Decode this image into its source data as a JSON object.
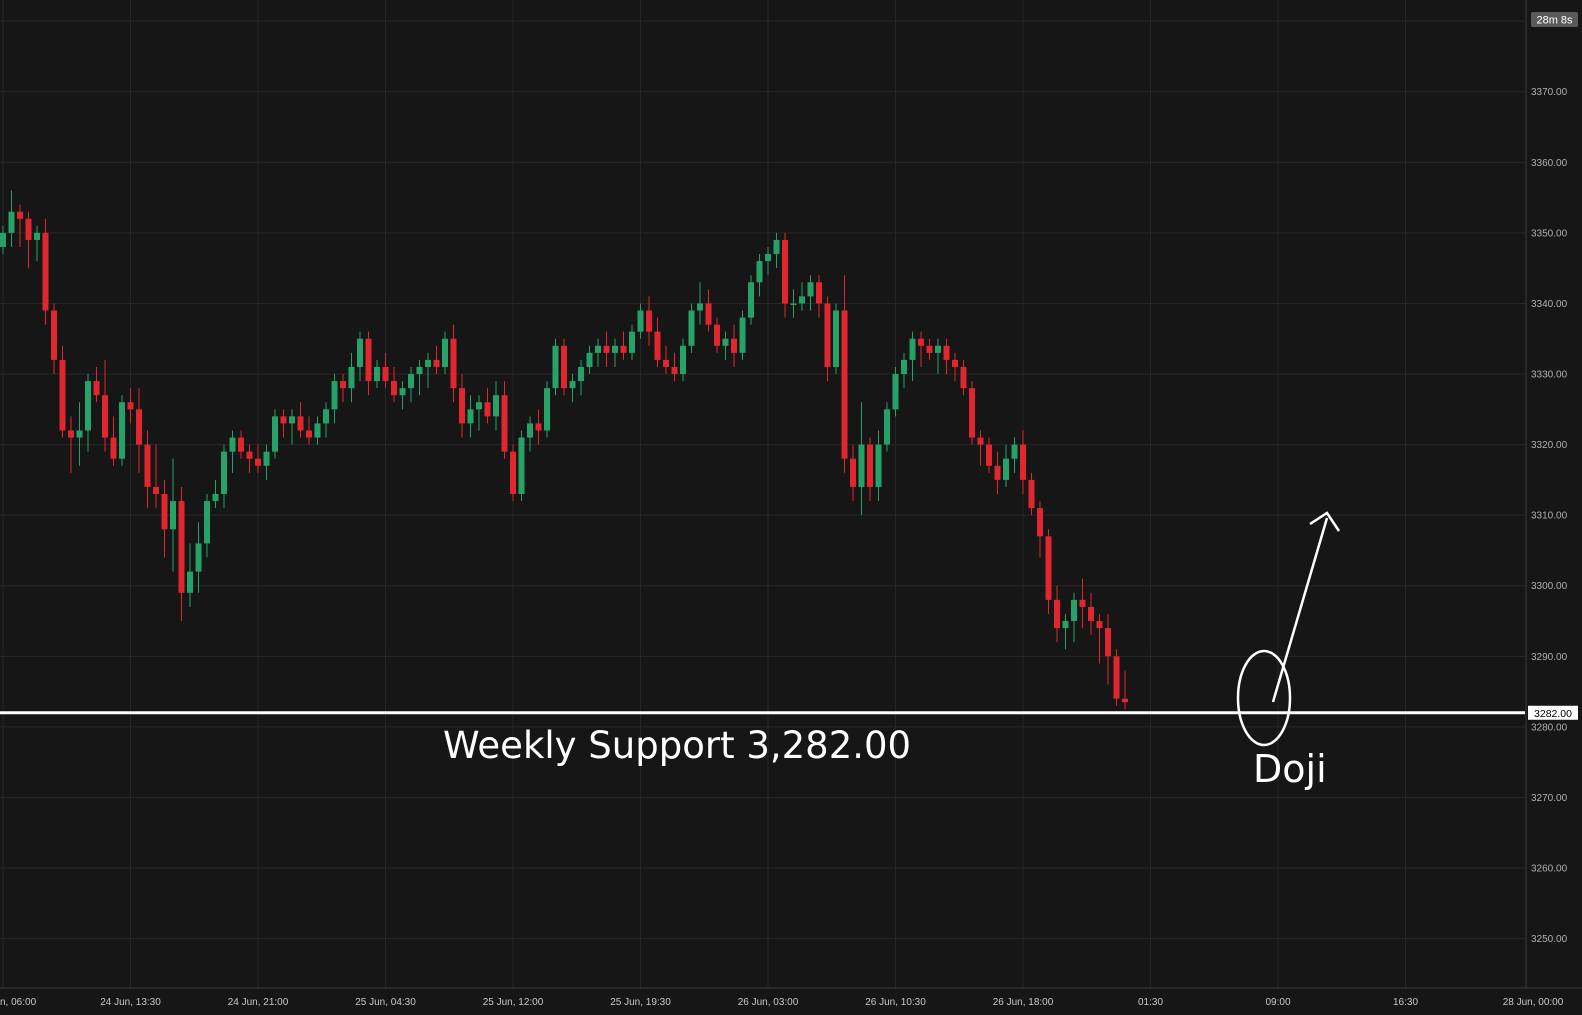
{
  "chart_data": {
    "type": "candlestick",
    "interval_minutes": 30,
    "first_candle_time": "24 Jun, 06:00",
    "ylim": [
      3243,
      3383
    ],
    "y_ticks": [
      3250,
      3260,
      3270,
      3280,
      3290,
      3300,
      3310,
      3320,
      3330,
      3340,
      3350,
      3360,
      3370,
      3380
    ],
    "y_tick_labels": [
      "3250.00",
      "3260.00",
      "3270.00",
      "3280.00",
      "3290.00",
      "3300.00",
      "3310.00",
      "3320.00",
      "3330.00",
      "3340.00",
      "3350.00",
      "3360.00",
      "3370.00",
      "3380.00"
    ],
    "x_tick_labels": [
      "n, 06:00",
      "24 Jun, 13:30",
      "24 Jun, 21:00",
      "25 Jun, 04:30",
      "25 Jun, 12:00",
      "25 Jun, 19:30",
      "26 Jun, 03:00",
      "26 Jun, 10:30",
      "26 Jun, 18:00",
      "01:30",
      "09:00",
      "16:30",
      "28 Jun, 00:00"
    ],
    "timer_badge": "28m 8s",
    "price_badge": "3282.00",
    "bull_color": "#26a269",
    "bear_color": "#e0262e",
    "support": {
      "value": 3282.0,
      "label": "Weekly Support 3,282.00",
      "color": "#ffffff"
    },
    "annotation": {
      "label": "Doji",
      "target_candle": 148,
      "arrow_to_price": 3309
    },
    "candles": [
      [
        3348,
        3351,
        3347,
        3350
      ],
      [
        3350,
        3356,
        3348,
        3353
      ],
      [
        3353,
        3354,
        3348,
        3352
      ],
      [
        3352,
        3353,
        3345,
        3349
      ],
      [
        3349,
        3351,
        3346,
        3350
      ],
      [
        3350,
        3352,
        3337,
        3339
      ],
      [
        3339,
        3340,
        3330,
        3332
      ],
      [
        3332,
        3334,
        3321,
        3322
      ],
      [
        3322,
        3324,
        3316,
        3321
      ],
      [
        3321,
        3326,
        3317,
        3322
      ],
      [
        3322,
        3330,
        3319,
        3329
      ],
      [
        3329,
        3331,
        3326,
        3327
      ],
      [
        3327,
        3332,
        3319,
        3321
      ],
      [
        3321,
        3324,
        3317,
        3318
      ],
      [
        3318,
        3327,
        3317,
        3326
      ],
      [
        3326,
        3328,
        3323,
        3325
      ],
      [
        3325,
        3328,
        3316,
        3320
      ],
      [
        3320,
        3322,
        3311,
        3314
      ],
      [
        3314,
        3320,
        3311,
        3313
      ],
      [
        3313,
        3315,
        3304,
        3308
      ],
      [
        3308,
        3318,
        3302,
        3312
      ],
      [
        3312,
        3314,
        3295,
        3299
      ],
      [
        3299,
        3306,
        3297,
        3302
      ],
      [
        3302,
        3309,
        3299,
        3306
      ],
      [
        3306,
        3313,
        3304,
        3312
      ],
      [
        3312,
        3315,
        3311,
        3313
      ],
      [
        3313,
        3320,
        3311,
        3319
      ],
      [
        3319,
        3322,
        3316,
        3321
      ],
      [
        3321,
        3322,
        3318,
        3319
      ],
      [
        3319,
        3320,
        3316,
        3318
      ],
      [
        3318,
        3320,
        3316,
        3317
      ],
      [
        3317,
        3320,
        3315,
        3319
      ],
      [
        3319,
        3325,
        3318,
        3324
      ],
      [
        3324,
        3325,
        3321,
        3323
      ],
      [
        3323,
        3325,
        3320,
        3324
      ],
      [
        3324,
        3326,
        3321,
        3322
      ],
      [
        3322,
        3324,
        3320,
        3321
      ],
      [
        3321,
        3324,
        3320,
        3323
      ],
      [
        3323,
        3326,
        3321,
        3325
      ],
      [
        3325,
        3330,
        3323,
        3329
      ],
      [
        3329,
        3330,
        3326,
        3328
      ],
      [
        3328,
        3333,
        3326,
        3331
      ],
      [
        3331,
        3336,
        3329,
        3335
      ],
      [
        3335,
        3336,
        3327,
        3329
      ],
      [
        3329,
        3332,
        3328,
        3331
      ],
      [
        3331,
        3333,
        3328,
        3329
      ],
      [
        3329,
        3331,
        3326,
        3327
      ],
      [
        3327,
        3329,
        3325,
        3328
      ],
      [
        3328,
        3331,
        3326,
        3330
      ],
      [
        3330,
        3332,
        3327,
        3331
      ],
      [
        3331,
        3333,
        3328,
        3332
      ],
      [
        3332,
        3334,
        3330,
        3331
      ],
      [
        3331,
        3336,
        3330,
        3335
      ],
      [
        3335,
        3337,
        3326,
        3328
      ],
      [
        3328,
        3330,
        3321,
        3323
      ],
      [
        3323,
        3327,
        3321,
        3325
      ],
      [
        3325,
        3327,
        3322,
        3326
      ],
      [
        3326,
        3328,
        3323,
        3324
      ],
      [
        3324,
        3329,
        3322,
        3327
      ],
      [
        3327,
        3329,
        3318,
        3319
      ],
      [
        3319,
        3320,
        3312,
        3313
      ],
      [
        3313,
        3322,
        3312,
        3321
      ],
      [
        3321,
        3324,
        3319,
        3323
      ],
      [
        3323,
        3325,
        3320,
        3322
      ],
      [
        3322,
        3329,
        3321,
        3328
      ],
      [
        3328,
        3335,
        3327,
        3334
      ],
      [
        3334,
        3335,
        3327,
        3328
      ],
      [
        3328,
        3330,
        3326,
        3329
      ],
      [
        3329,
        3332,
        3327,
        3331
      ],
      [
        3331,
        3334,
        3330,
        3333
      ],
      [
        3333,
        3335,
        3331,
        3334
      ],
      [
        3334,
        3336,
        3331,
        3333
      ],
      [
        3333,
        3335,
        3331,
        3334
      ],
      [
        3334,
        3336,
        3332,
        3333
      ],
      [
        3333,
        3337,
        3332,
        3336
      ],
      [
        3336,
        3340,
        3335,
        3339
      ],
      [
        3339,
        3341,
        3334,
        3336
      ],
      [
        3336,
        3338,
        3331,
        3332
      ],
      [
        3332,
        3334,
        3330,
        3331
      ],
      [
        3331,
        3333,
        3329,
        3330
      ],
      [
        3330,
        3335,
        3329,
        3334
      ],
      [
        3334,
        3340,
        3333,
        3339
      ],
      [
        3339,
        3343,
        3337,
        3340
      ],
      [
        3340,
        3342,
        3336,
        3337
      ],
      [
        3337,
        3338,
        3333,
        3334
      ],
      [
        3334,
        3336,
        3332,
        3335
      ],
      [
        3335,
        3337,
        3331,
        3333
      ],
      [
        3333,
        3339,
        3332,
        3338
      ],
      [
        3338,
        3344,
        3337,
        3343
      ],
      [
        3343,
        3347,
        3341,
        3346
      ],
      [
        3346,
        3348,
        3344,
        3347
      ],
      [
        3347,
        3350,
        3345,
        3349
      ],
      [
        3349,
        3350,
        3338,
        3340
      ],
      [
        3340,
        3342,
        3338,
        3340
      ],
      [
        3340,
        3343,
        3339,
        3341
      ],
      [
        3341,
        3344,
        3339,
        3343
      ],
      [
        3343,
        3344,
        3338,
        3340
      ],
      [
        3340,
        3341,
        3329,
        3331
      ],
      [
        3331,
        3340,
        3330,
        3339
      ],
      [
        3339,
        3344,
        3316,
        3318
      ],
      [
        3318,
        3320,
        3312,
        3314
      ],
      [
        3314,
        3326,
        3310,
        3320
      ],
      [
        3320,
        3321,
        3312,
        3314
      ],
      [
        3314,
        3322,
        3312,
        3320
      ],
      [
        3320,
        3326,
        3319,
        3325
      ],
      [
        3325,
        3331,
        3324,
        3330
      ],
      [
        3330,
        3333,
        3328,
        3332
      ],
      [
        3332,
        3336,
        3329,
        3335
      ],
      [
        3335,
        3336,
        3331,
        3334
      ],
      [
        3334,
        3335,
        3332,
        3333
      ],
      [
        3333,
        3335,
        3330,
        3334
      ],
      [
        3334,
        3335,
        3330,
        3332
      ],
      [
        3332,
        3333,
        3329,
        3331
      ],
      [
        3331,
        3332,
        3327,
        3328
      ],
      [
        3328,
        3329,
        3320,
        3321
      ],
      [
        3321,
        3322,
        3317,
        3320
      ],
      [
        3320,
        3321,
        3316,
        3317
      ],
      [
        3317,
        3319,
        3313,
        3315
      ],
      [
        3315,
        3320,
        3314,
        3318
      ],
      [
        3318,
        3321,
        3316,
        3320
      ],
      [
        3320,
        3322,
        3313,
        3315
      ],
      [
        3315,
        3316,
        3310,
        3311
      ],
      [
        3311,
        3312,
        3304,
        3307
      ],
      [
        3307,
        3308,
        3296,
        3298
      ],
      [
        3298,
        3300,
        3292,
        3294
      ],
      [
        3294,
        3296,
        3291,
        3295
      ],
      [
        3295,
        3299,
        3292,
        3298
      ],
      [
        3298,
        3301,
        3294,
        3297
      ],
      [
        3297,
        3299,
        3293,
        3295
      ],
      [
        3295,
        3296,
        3289,
        3294
      ],
      [
        3294,
        3296,
        3286,
        3290
      ],
      [
        3290,
        3291,
        3283,
        3284
      ],
      [
        3284,
        3288,
        3282.5,
        3283.5
      ]
    ]
  }
}
